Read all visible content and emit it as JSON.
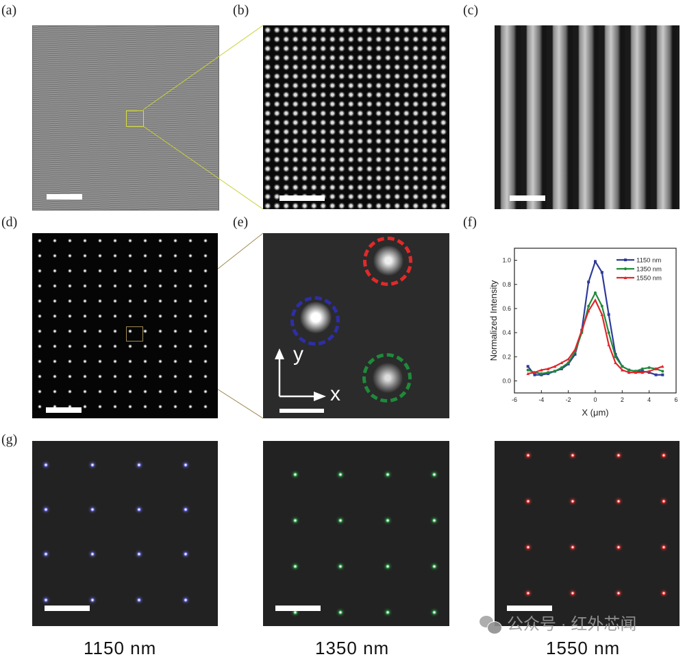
{
  "panel_labels": {
    "a": "(a)",
    "b": "(b)",
    "c": "(c)",
    "d": "(d)",
    "e": "(e)",
    "f": "(f)",
    "g": "(g)"
  },
  "panel_e": {
    "y_axis": "y",
    "x_axis": "x"
  },
  "wavelength_labels": [
    "1150 nm",
    "1350 nm",
    "1550 nm"
  ],
  "watermark": "公众号 · 红外芯闻",
  "colors": {
    "blue": "#2e3a9a",
    "green": "#1f8a3a",
    "red": "#e0262b",
    "spot_blue": "#7a7cff",
    "spot_green": "#3fd060",
    "spot_red": "#ff3a3a"
  },
  "chart_data": {
    "type": "line",
    "xlabel": "X (μm)",
    "ylabel": "Normalized Intensity",
    "xlim": [
      -6,
      6
    ],
    "ylim": [
      -0.1,
      1.1
    ],
    "xticks": [
      -6,
      -4,
      -2,
      0,
      2,
      4,
      6
    ],
    "yticks": [
      0.0,
      0.2,
      0.4,
      0.6,
      0.8,
      1.0
    ],
    "legend_position": "top-right",
    "x": [
      -5,
      -4.5,
      -4,
      -3.5,
      -3,
      -2.5,
      -2,
      -1.5,
      -1,
      -0.5,
      0,
      0.5,
      1,
      1.5,
      2,
      2.5,
      3,
      3.5,
      4,
      4.5,
      5
    ],
    "series": [
      {
        "name": "1150 nm",
        "color": "#2e3a9a",
        "marker": "square",
        "values": [
          0.12,
          0.05,
          0.05,
          0.06,
          0.08,
          0.1,
          0.14,
          0.22,
          0.42,
          0.82,
          0.99,
          0.9,
          0.55,
          0.22,
          0.12,
          0.09,
          0.08,
          0.08,
          0.07,
          0.05,
          0.05
        ]
      },
      {
        "name": "1350 nm",
        "color": "#1f8a3a",
        "marker": "circle",
        "values": [
          0.09,
          0.07,
          0.06,
          0.07,
          0.08,
          0.11,
          0.15,
          0.24,
          0.4,
          0.62,
          0.73,
          0.62,
          0.4,
          0.2,
          0.12,
          0.09,
          0.08,
          0.1,
          0.11,
          0.1,
          0.08
        ]
      },
      {
        "name": "1550 nm",
        "color": "#e0262b",
        "marker": "triangle",
        "values": [
          0.06,
          0.07,
          0.09,
          0.1,
          0.12,
          0.15,
          0.18,
          0.26,
          0.42,
          0.58,
          0.67,
          0.55,
          0.3,
          0.15,
          0.09,
          0.07,
          0.07,
          0.07,
          0.08,
          0.1,
          0.12
        ]
      }
    ]
  }
}
